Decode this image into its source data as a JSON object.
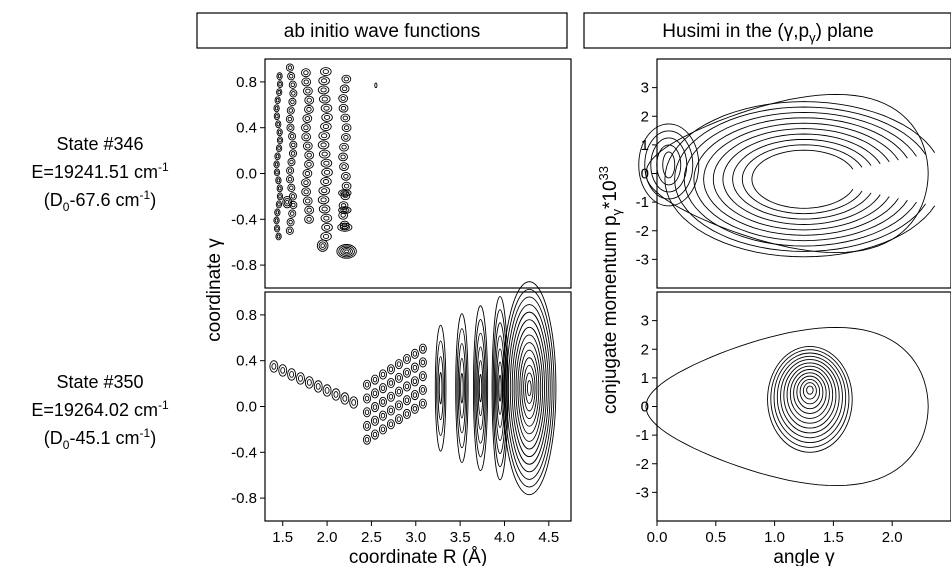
{
  "panel_titles": {
    "left": "ab initio wave functions",
    "right_prefix": "Husimi in the (",
    "right_g": "γ",
    "right_mid": ",p",
    "right_sub": "γ",
    "right_suffix": ") plane"
  },
  "states": [
    {
      "name": "State #346",
      "energy_prefix": "E=19241.51 cm",
      "energy_sup": "-1",
      "d_prefix": "(D",
      "d_sub": "0",
      "d_mid": "-67.6 cm",
      "d_sup": "-1",
      "d_suffix": ")"
    },
    {
      "name": "State #350",
      "energy_prefix": "E=19264.02 cm",
      "energy_sup": "-1",
      "d_prefix": "(D",
      "d_sub": "0",
      "d_mid": "-45.1 cm",
      "d_sup": "-1",
      "d_suffix": ")"
    }
  ],
  "axes": {
    "left_y_title": "coordinate γ",
    "left_x_title": "coordinate R (Å)",
    "right_y_title_main": "conjugate momentum  p",
    "right_y_title_sub": "γ",
    "right_y_title_tail": "*10",
    "right_y_title_sup": "33",
    "right_x_title": "angle γ"
  },
  "chart_data": [
    {
      "type": "contour",
      "panel": "ab initio wave function, State #346",
      "xlim": [
        1.3,
        4.75
      ],
      "ylim": [
        -1.0,
        1.0
      ],
      "x_ticks": [],
      "y_ticks": [
        "0.8",
        "0.4",
        "0.0",
        "-0.4",
        "-0.8"
      ],
      "y_tick_values": [
        0.8,
        0.4,
        0.0,
        -0.4,
        -0.8
      ]
    },
    {
      "type": "contour",
      "panel": "ab initio wave function, State #350",
      "xlim": [
        1.3,
        4.75
      ],
      "ylim": [
        -1.0,
        1.0
      ],
      "x_ticks": [
        "1.5",
        "2.0",
        "2.5",
        "3.0",
        "3.5",
        "4.0",
        "4.5"
      ],
      "x_tick_values": [
        1.5,
        2.0,
        2.5,
        3.0,
        3.5,
        4.0,
        4.5
      ],
      "y_ticks": [
        "0.8",
        "0.4",
        "0.0",
        "-0.4",
        "-0.8"
      ],
      "y_tick_values": [
        0.8,
        0.4,
        0.0,
        -0.4,
        -0.8
      ]
    },
    {
      "type": "contour",
      "panel": "Husimi distribution, State #346",
      "xlim": [
        0.0,
        2.5
      ],
      "ylim": [
        -4.0,
        4.0
      ],
      "x_ticks": [],
      "y_ticks": [
        "3",
        "2",
        "1",
        "0",
        "-1",
        "-2",
        "-3"
      ],
      "y_tick_values": [
        3,
        2,
        1,
        0,
        -1,
        -2,
        -3
      ]
    },
    {
      "type": "contour",
      "panel": "Husimi distribution, State #350",
      "xlim": [
        0.0,
        2.5
      ],
      "ylim": [
        -4.0,
        4.0
      ],
      "x_ticks": [
        "0.0",
        "0.5",
        "1.0",
        "1.5",
        "2.0"
      ],
      "x_tick_values": [
        0.0,
        0.5,
        1.0,
        1.5,
        2.0
      ],
      "y_ticks": [
        "3",
        "2",
        "1",
        "0",
        "-1",
        "-2",
        "-3"
      ],
      "y_tick_values": [
        3,
        2,
        1,
        0,
        -1,
        -2,
        -3
      ]
    }
  ]
}
